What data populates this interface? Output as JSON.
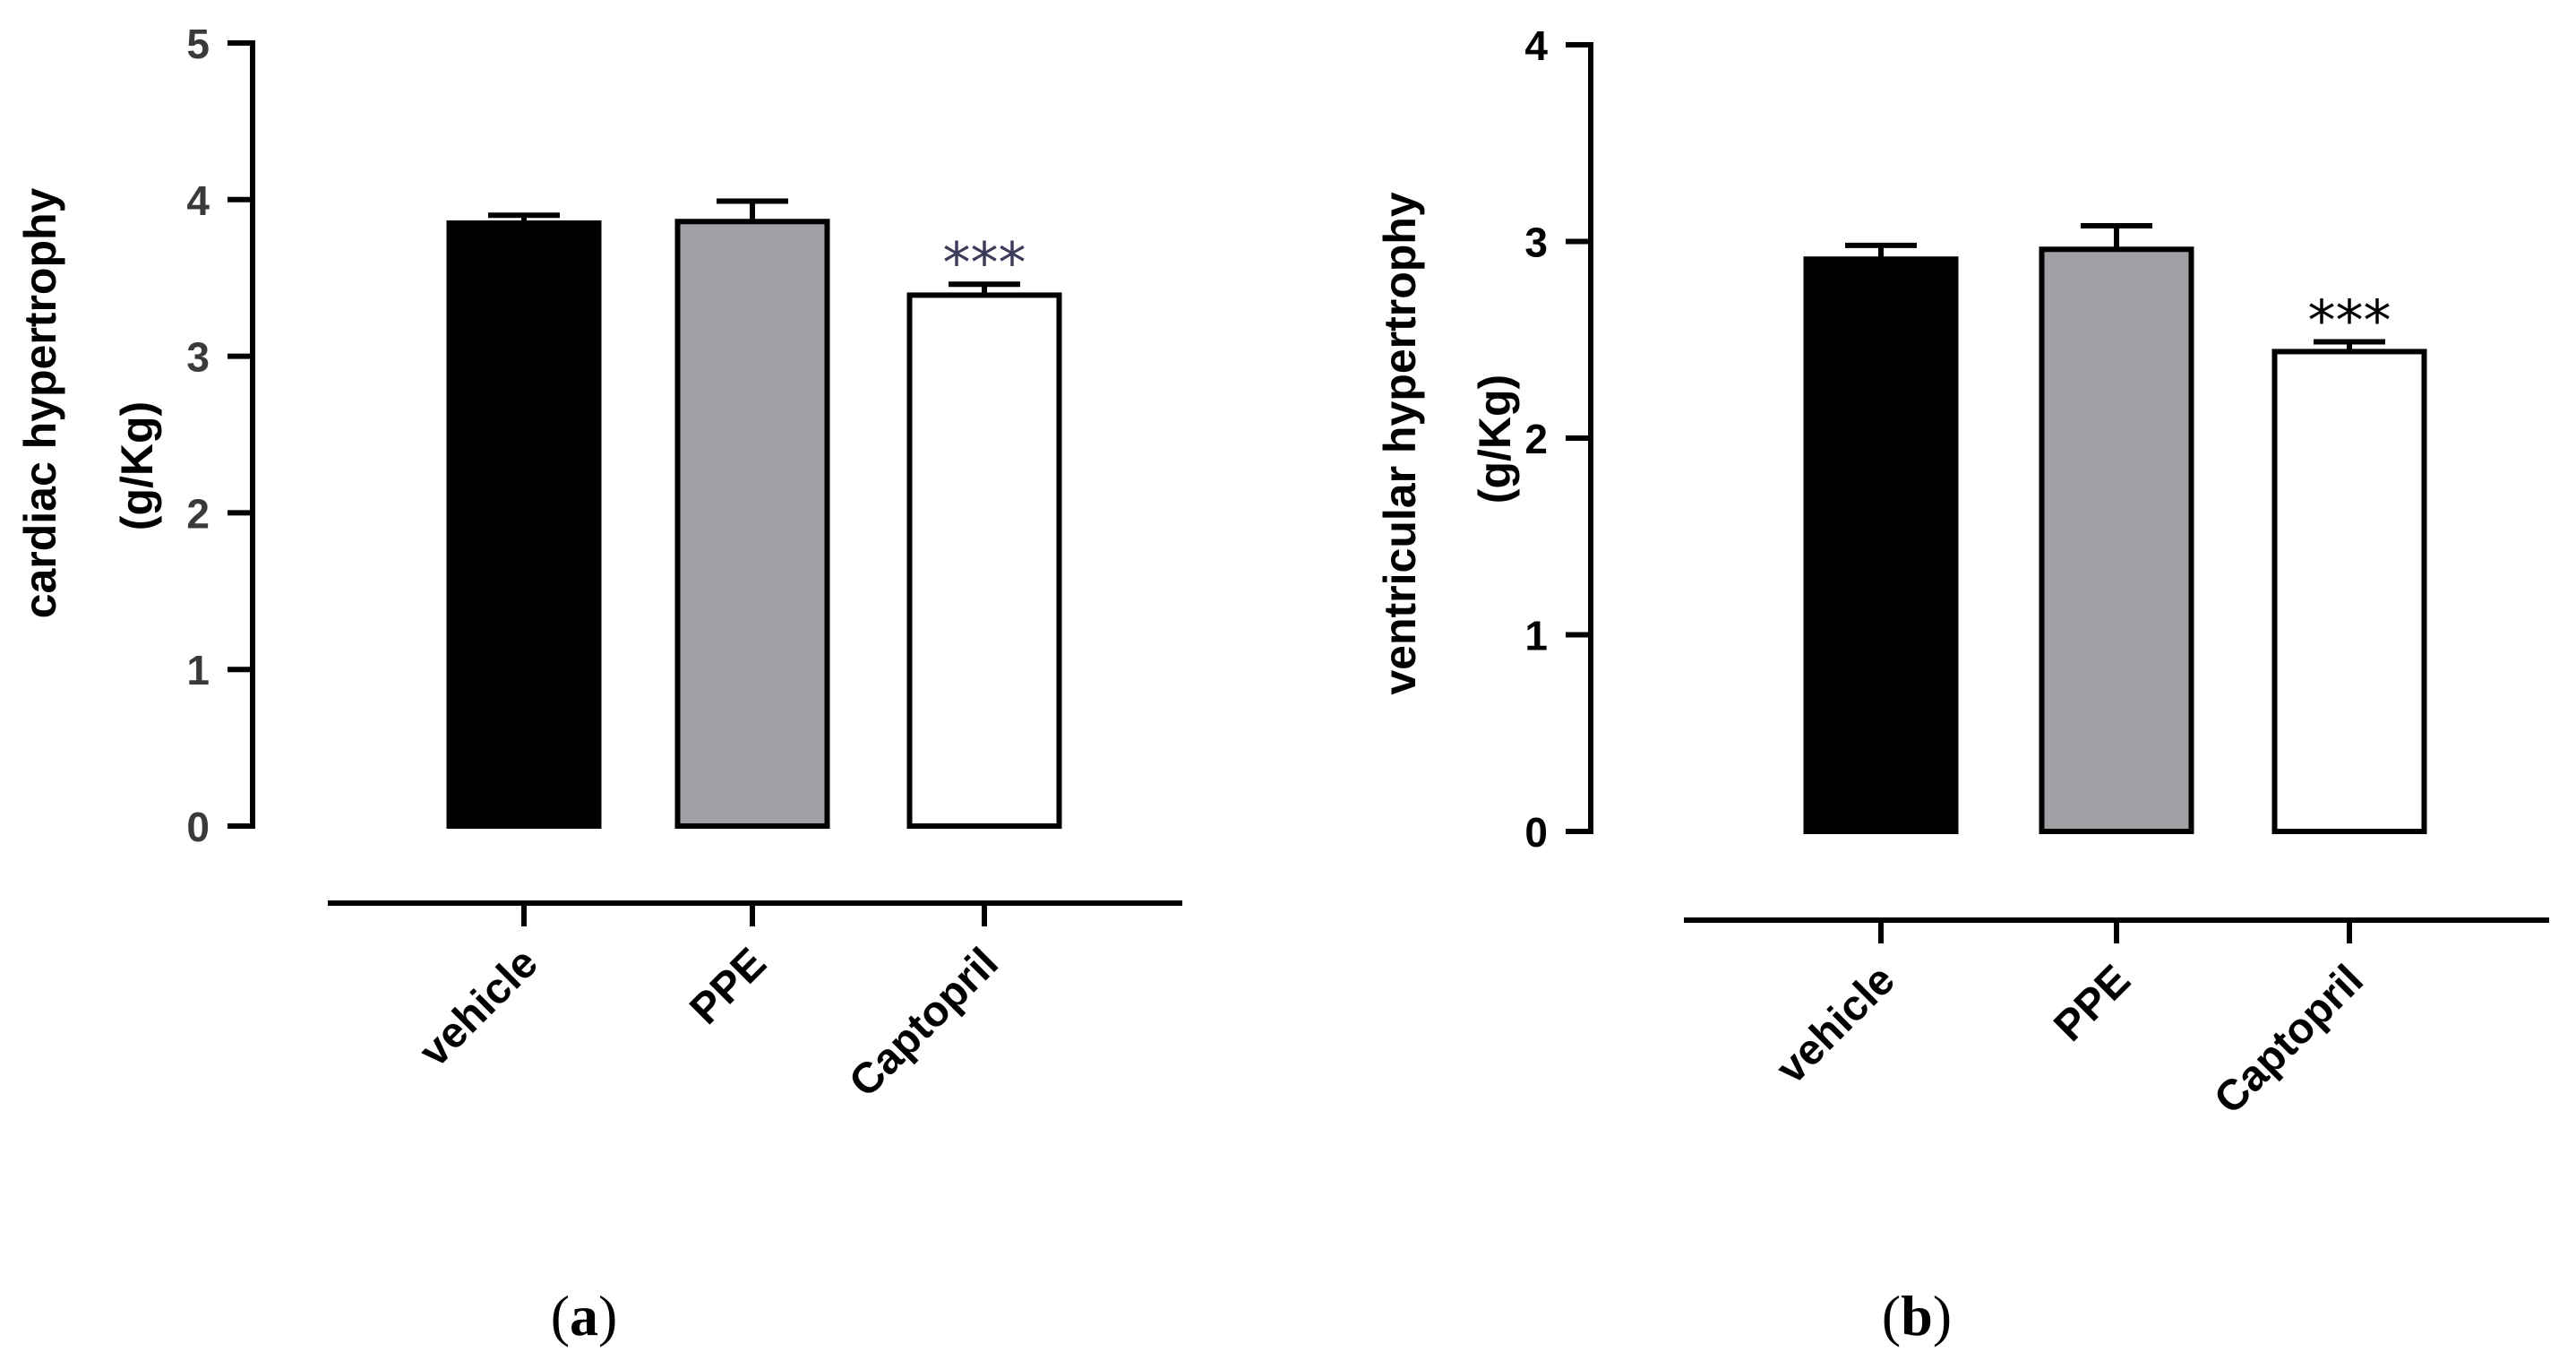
{
  "chart_data": [
    {
      "type": "bar",
      "panel": "a",
      "panel_label": {
        "open": "(",
        "letter": "a",
        "close": ")"
      },
      "ylabel_line1": "cardiac hypertrophy",
      "ylabel_line2": "(g/Kg)",
      "xlabel": "",
      "ylim": [
        0,
        5
      ],
      "yticks": [
        "0",
        "1",
        "2",
        "3",
        "4",
        "5"
      ],
      "categories": [
        "vehicle",
        "PPE",
        "Captopril"
      ],
      "values": [
        3.85,
        3.86,
        3.39
      ],
      "errors": [
        0.05,
        0.13,
        0.07
      ],
      "fills": [
        "#000000",
        "#a0a0a4",
        "#ffffff"
      ],
      "significance": [
        "",
        "",
        "***"
      ],
      "sig_color": "#3c3c5a",
      "grid": false
    },
    {
      "type": "bar",
      "panel": "b",
      "panel_label": {
        "open": "(",
        "letter": "b",
        "close": ")"
      },
      "ylabel_line1": "ventricular hypertrophy",
      "ylabel_line2": "(g/Kg)",
      "xlabel": "",
      "ylim": [
        0,
        4
      ],
      "yticks": [
        "0",
        "1",
        "2",
        "3",
        "4"
      ],
      "categories": [
        "vehicle",
        "PPE",
        "Captopril"
      ],
      "values": [
        2.91,
        2.96,
        2.44
      ],
      "errors": [
        0.07,
        0.12,
        0.05
      ],
      "fills": [
        "#000000",
        "#a0a0a4",
        "#ffffff"
      ],
      "significance": [
        "",
        "",
        "***"
      ],
      "sig_color": "#000000",
      "grid": false
    }
  ]
}
